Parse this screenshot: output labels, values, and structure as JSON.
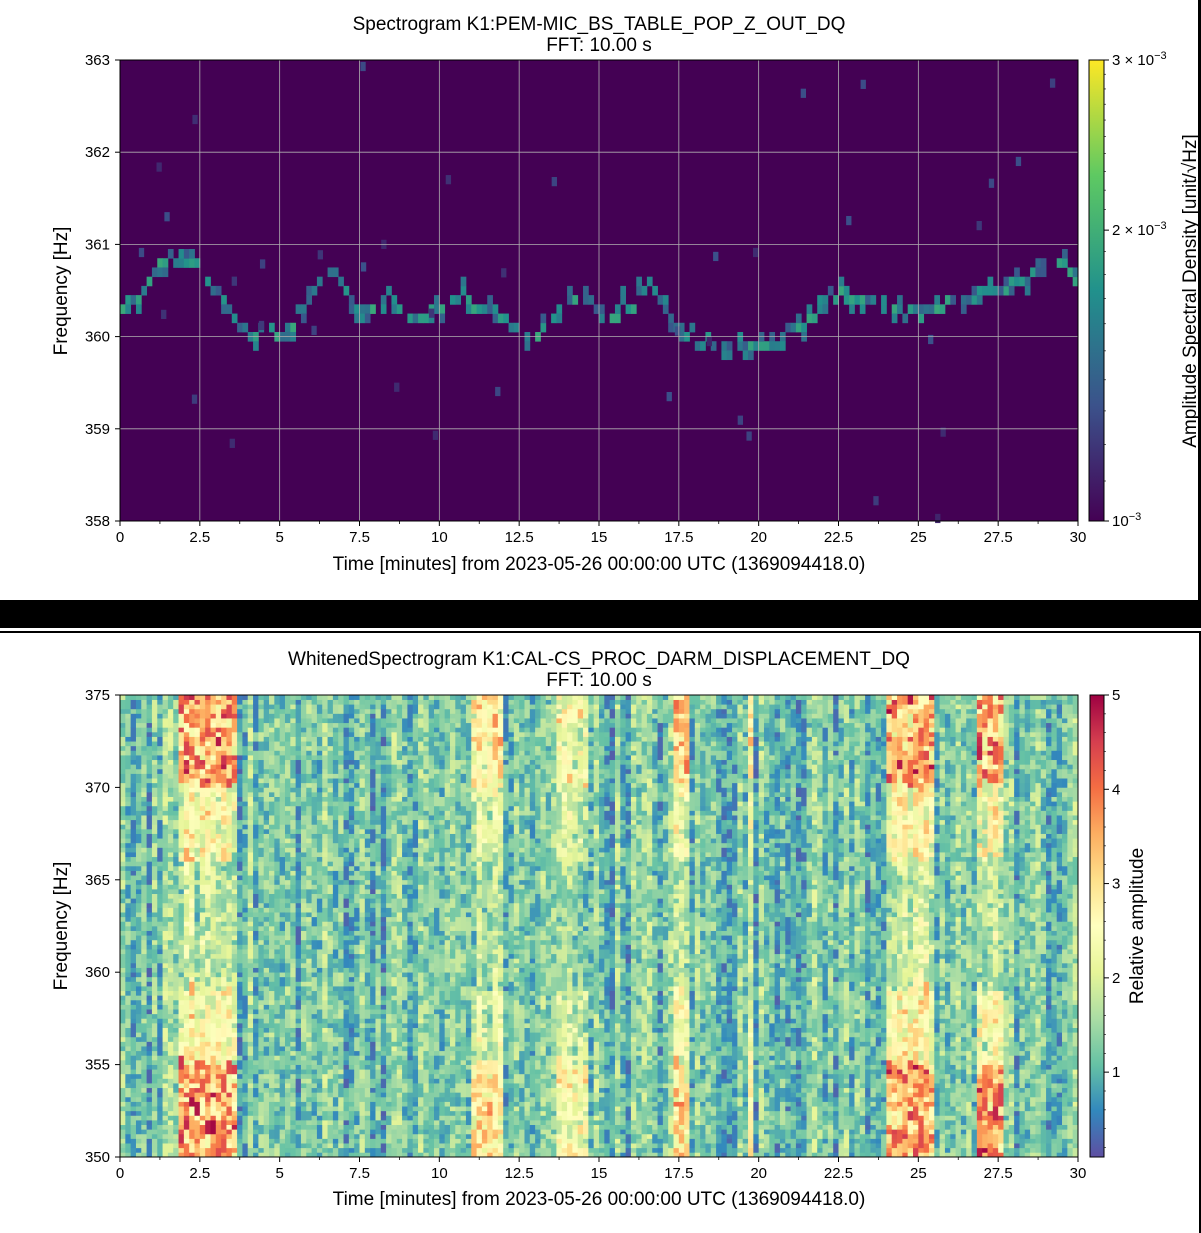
{
  "chart_data": [
    {
      "type": "heatmap",
      "title": "Spectrogram K1:PEM-MIC_BS_TABLE_POP_Z_OUT_DQ",
      "subtitle": "FFT: 10.00 s",
      "xlabel": "Time [minutes] from 2023-05-26 00:00:00 UTC (1369094418.0)",
      "ylabel": "Frequency [Hz]",
      "colorbar_label": "Amplitude Spectral Density [unit/√Hz]",
      "colormap": "viridis",
      "color_scale": "log",
      "xlim": [
        0,
        30
      ],
      "ylim": [
        358,
        363
      ],
      "x_ticks": [
        "0",
        "2.5",
        "5",
        "7.5",
        "10",
        "12.5",
        "15",
        "17.5",
        "20",
        "22.5",
        "25",
        "27.5",
        "30"
      ],
      "y_ticks": [
        "358",
        "359",
        "360",
        "361",
        "362",
        "363"
      ],
      "colorbar_range": [
        0.001,
        0.003
      ],
      "colorbar_ticks": [
        {
          "value": 0.001,
          "label": "10",
          "exp": "−3"
        },
        {
          "value": 0.002,
          "label": "2 × 10",
          "exp": "−3"
        },
        {
          "value": 0.003,
          "label": "3 × 10",
          "exp": "−3"
        }
      ],
      "grid": true,
      "background_value": 0.001,
      "line_trace": {
        "description": "wandering narrow line",
        "points": [
          {
            "t": 0.0,
            "f": 360.25
          },
          {
            "t": 0.6,
            "f": 360.45
          },
          {
            "t": 1.3,
            "f": 360.85
          },
          {
            "t": 2.4,
            "f": 360.8
          },
          {
            "t": 3.0,
            "f": 360.45
          },
          {
            "t": 4.0,
            "f": 360.05
          },
          {
            "t": 5.2,
            "f": 360.05
          },
          {
            "t": 6.6,
            "f": 360.75
          },
          {
            "t": 7.5,
            "f": 360.25
          },
          {
            "t": 8.4,
            "f": 360.4
          },
          {
            "t": 9.4,
            "f": 360.2
          },
          {
            "t": 10.8,
            "f": 360.45
          },
          {
            "t": 12.1,
            "f": 360.15
          },
          {
            "t": 13.0,
            "f": 360.0
          },
          {
            "t": 14.1,
            "f": 360.45
          },
          {
            "t": 15.4,
            "f": 360.2
          },
          {
            "t": 16.6,
            "f": 360.55
          },
          {
            "t": 17.6,
            "f": 360.05
          },
          {
            "t": 19.0,
            "f": 359.85
          },
          {
            "t": 20.6,
            "f": 359.95
          },
          {
            "t": 22.4,
            "f": 360.45
          },
          {
            "t": 24.8,
            "f": 360.25
          },
          {
            "t": 26.6,
            "f": 360.45
          },
          {
            "t": 28.0,
            "f": 360.55
          },
          {
            "t": 29.3,
            "f": 360.9
          },
          {
            "t": 30.0,
            "f": 360.6
          }
        ]
      }
    },
    {
      "type": "heatmap",
      "title": "WhitenedSpectrogram K1:CAL-CS_PROC_DARM_DISPLACEMENT_DQ",
      "subtitle": "FFT: 10.00 s",
      "xlabel": "Time [minutes] from 2023-05-26 00:00:00 UTC (1369094418.0)",
      "ylabel": "Frequency [Hz]",
      "colorbar_label": "Relative amplitude",
      "colormap": "Spectral_r",
      "color_scale": "linear",
      "xlim": [
        0,
        30
      ],
      "ylim": [
        350,
        375
      ],
      "x_ticks": [
        "0",
        "2.5",
        "5",
        "7.5",
        "10",
        "12.5",
        "15",
        "17.5",
        "20",
        "22.5",
        "25",
        "27.5",
        "30"
      ],
      "y_ticks": [
        "350",
        "355",
        "360",
        "365",
        "370",
        "375"
      ],
      "colorbar_range": [
        0.1,
        5
      ],
      "colorbar_ticks": [
        "1",
        "2",
        "3",
        "4",
        "5"
      ],
      "grid": false,
      "broadband_bursts": [
        {
          "t_start": 1.8,
          "t_end": 3.6,
          "peak": 4.5
        },
        {
          "t_start": 11.0,
          "t_end": 12.0,
          "peak": 3.4
        },
        {
          "t_start": 13.6,
          "t_end": 14.6,
          "peak": 3.0
        },
        {
          "t_start": 17.4,
          "t_end": 17.8,
          "peak": 3.8
        },
        {
          "t_start": 19.6,
          "t_end": 19.9,
          "peak": 3.3
        },
        {
          "t_start": 24.0,
          "t_end": 25.5,
          "peak": 4.5
        },
        {
          "t_start": 26.9,
          "t_end": 27.6,
          "peak": 4.5
        }
      ]
    }
  ]
}
